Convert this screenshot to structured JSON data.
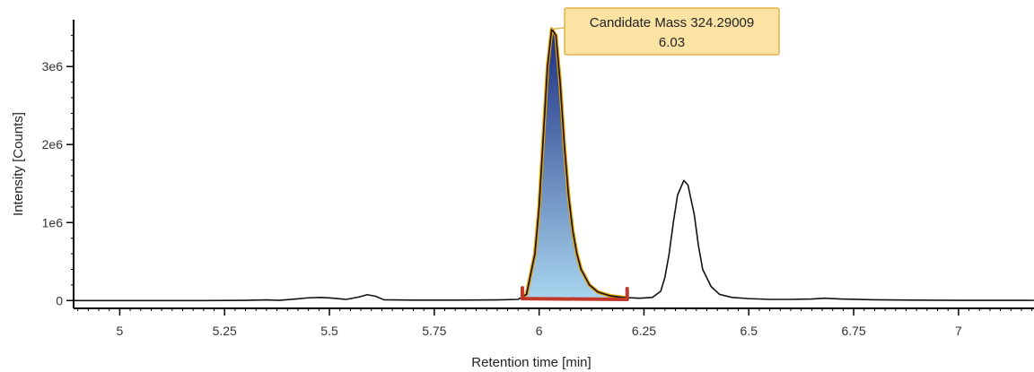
{
  "chart_data": {
    "type": "line",
    "xlabel": "Retention time [min]",
    "ylabel": "Intensity [Counts]",
    "xlim": [
      4.89,
      7.18
    ],
    "ylim": [
      -100000,
      3600000
    ],
    "x_ticks": [
      5,
      5.25,
      5.5,
      5.75,
      6,
      6.25,
      6.5,
      6.75,
      7
    ],
    "x_tick_labels": [
      "5",
      "5.25",
      "5.5",
      "5.75",
      "6",
      "6.25",
      "6.5",
      "6.75",
      "7"
    ],
    "y_ticks": [
      0,
      1000000,
      2000000,
      3000000
    ],
    "y_tick_labels": [
      "0",
      "1e6",
      "2e6",
      "3e6"
    ],
    "grid": false,
    "series": [
      {
        "line_color": "#111111",
        "points": [
          [
            4.89,
            0
          ],
          [
            5.2,
            0
          ],
          [
            5.3,
            3000
          ],
          [
            5.35,
            8000
          ],
          [
            5.38,
            3000
          ],
          [
            5.42,
            20000
          ],
          [
            5.45,
            35000
          ],
          [
            5.48,
            40000
          ],
          [
            5.51,
            30000
          ],
          [
            5.54,
            15000
          ],
          [
            5.57,
            45000
          ],
          [
            5.59,
            75000
          ],
          [
            5.61,
            55000
          ],
          [
            5.63,
            10000
          ],
          [
            5.7,
            5000
          ],
          [
            5.8,
            5000
          ],
          [
            5.9,
            8000
          ],
          [
            5.95,
            15000
          ],
          [
            5.97,
            80000
          ],
          [
            5.99,
            600000
          ],
          [
            6.0,
            1200000
          ],
          [
            6.01,
            2100000
          ],
          [
            6.02,
            3000000
          ],
          [
            6.03,
            3480000
          ],
          [
            6.04,
            3400000
          ],
          [
            6.05,
            2800000
          ],
          [
            6.06,
            2000000
          ],
          [
            6.07,
            1350000
          ],
          [
            6.08,
            900000
          ],
          [
            6.09,
            600000
          ],
          [
            6.1,
            400000
          ],
          [
            6.12,
            200000
          ],
          [
            6.14,
            110000
          ],
          [
            6.17,
            60000
          ],
          [
            6.2,
            40000
          ],
          [
            6.24,
            30000
          ],
          [
            6.27,
            40000
          ],
          [
            6.29,
            120000
          ],
          [
            6.3,
            300000
          ],
          [
            6.31,
            600000
          ],
          [
            6.32,
            1000000
          ],
          [
            6.33,
            1350000
          ],
          [
            6.345,
            1540000
          ],
          [
            6.355,
            1480000
          ],
          [
            6.37,
            1100000
          ],
          [
            6.38,
            700000
          ],
          [
            6.39,
            400000
          ],
          [
            6.41,
            180000
          ],
          [
            6.43,
            80000
          ],
          [
            6.46,
            40000
          ],
          [
            6.5,
            25000
          ],
          [
            6.55,
            15000
          ],
          [
            6.6,
            15000
          ],
          [
            6.65,
            20000
          ],
          [
            6.68,
            30000
          ],
          [
            6.72,
            20000
          ],
          [
            6.8,
            10000
          ],
          [
            6.9,
            5000
          ],
          [
            7.0,
            3000
          ],
          [
            7.18,
            2000
          ]
        ]
      }
    ],
    "highlighted_peak": {
      "start": 5.96,
      "end": 6.21,
      "fill_top_color": "#1a2e80",
      "fill_bottom_color": "#a8d4ee",
      "outline_color": "#e8a200",
      "baseline_color": "#c0392b"
    },
    "annotation": {
      "line1": "Candidate Mass 324.29009",
      "line2": "6.03",
      "x": 6.03,
      "y": 3480000,
      "bg_color": "#fbe3a4",
      "border_color": "#e0b24a"
    }
  }
}
